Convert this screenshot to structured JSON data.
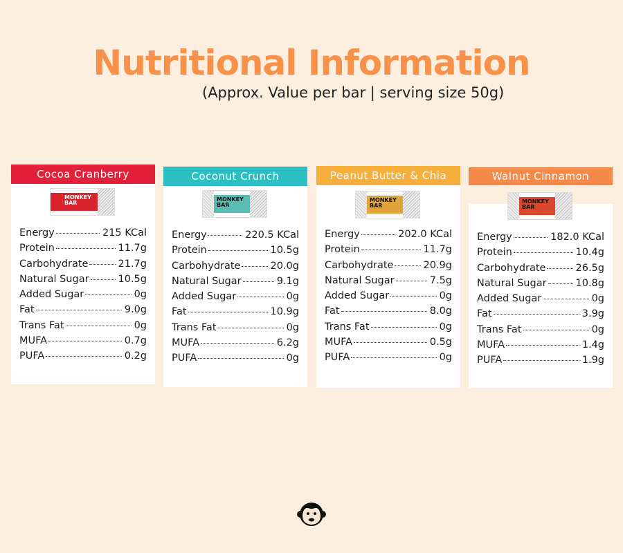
{
  "header": {
    "title": "Nutritional Information",
    "subtitle": "(Approx. Value per bar | serving size 50g)"
  },
  "brand": {
    "line1": "MONKEY",
    "line2": "BAR"
  },
  "products": [
    {
      "name": "Cocoa Cranberry",
      "header_color": "#e3203a",
      "wrapper_color": "#d9232f",
      "nutrition": [
        {
          "label": "Energy",
          "value": "215 KCal"
        },
        {
          "label": "Protein",
          "value": "11.7g"
        },
        {
          "label": "Carbohydrate",
          "value": "21.7g"
        },
        {
          "label": "Natural Sugar",
          "value": "10.5g"
        },
        {
          "label": "Added Sugar",
          "value": "0g"
        },
        {
          "label": "Fat",
          "value": "9.0g"
        },
        {
          "label": "Trans Fat",
          "value": "0g"
        },
        {
          "label": "MUFA",
          "value": "0.7g"
        },
        {
          "label": "PUFA",
          "value": "0.2g"
        }
      ]
    },
    {
      "name": "Coconut Crunch",
      "header_color": "#2bbfc4",
      "wrapper_color": "#5bbcb3",
      "nutrition": [
        {
          "label": "Energy",
          "value": "220.5 KCal"
        },
        {
          "label": "Protein",
          "value": "10.5g"
        },
        {
          "label": "Carbohydrate",
          "value": "20.0g"
        },
        {
          "label": "Natural Sugar",
          "value": "9.1g"
        },
        {
          "label": "Added Sugar",
          "value": "0g"
        },
        {
          "label": "Fat",
          "value": "10.9g"
        },
        {
          "label": "Trans Fat",
          "value": "0g"
        },
        {
          "label": "MUFA",
          "value": "6.2g"
        },
        {
          "label": "PUFA",
          "value": "0g"
        }
      ]
    },
    {
      "name": "Peanut Butter & Chia",
      "header_color": "#f6ae3c",
      "wrapper_color": "#e0a43a",
      "nutrition": [
        {
          "label": "Energy",
          "value": "202.0 KCal"
        },
        {
          "label": "Protein",
          "value": "11.7g"
        },
        {
          "label": "Carbohydrate",
          "value": "20.9g"
        },
        {
          "label": "Natural Sugar",
          "value": "7.5g"
        },
        {
          "label": "Added Sugar",
          "value": "0g"
        },
        {
          "label": "Fat",
          "value": "8.0g"
        },
        {
          "label": "Trans Fat",
          "value": "0g"
        },
        {
          "label": "MUFA",
          "value": "0.5g"
        },
        {
          "label": "PUFA",
          "value": "0g"
        }
      ]
    },
    {
      "name": "Walnut Cinnamon",
      "header_color": "#f48a4a",
      "wrapper_color": "#d9472d",
      "nutrition": [
        {
          "label": "Energy",
          "value": "182.0 KCal"
        },
        {
          "label": "Protein",
          "value": "10.4g"
        },
        {
          "label": "Carbohydrate",
          "value": "26.5g"
        },
        {
          "label": "Natural Sugar",
          "value": "10.8g"
        },
        {
          "label": "Added Sugar",
          "value": "0g"
        },
        {
          "label": "Fat",
          "value": "3.9g"
        },
        {
          "label": "Trans Fat",
          "value": "0g"
        },
        {
          "label": "MUFA",
          "value": "1.4g"
        },
        {
          "label": "PUFA",
          "value": "1.9g"
        }
      ]
    }
  ],
  "footer": {
    "logo_icon": "monkey-face-icon"
  }
}
